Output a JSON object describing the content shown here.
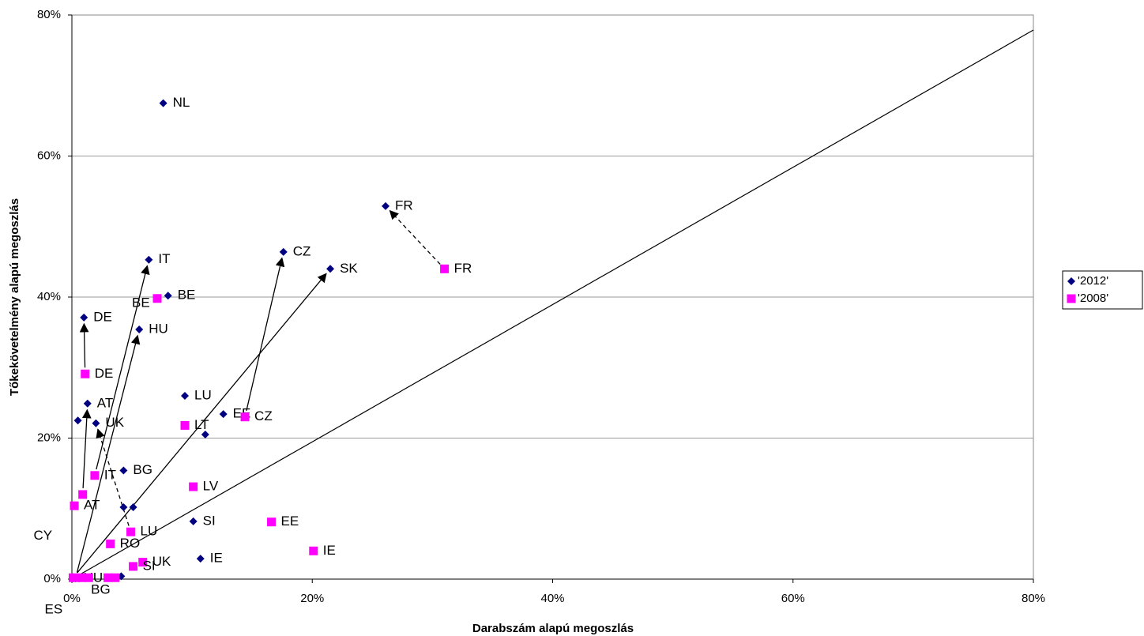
{
  "chart_data": {
    "type": "scatter",
    "x_label": "Darabszám alapú megoszlás",
    "y_label": "Tőkekövetelmény alapú megoszlás",
    "xlim": [
      0,
      80
    ],
    "ylim": [
      0,
      80
    ],
    "xticks": [
      {
        "value": 0,
        "label": "0%"
      },
      {
        "value": 20,
        "label": "20%"
      },
      {
        "value": 40,
        "label": "40%"
      },
      {
        "value": 60,
        "label": "60%"
      },
      {
        "value": 80,
        "label": "80%"
      }
    ],
    "yticks": [
      {
        "value": 0,
        "label": "0%"
      },
      {
        "value": 20,
        "label": "20%"
      },
      {
        "value": 40,
        "label": "40%"
      },
      {
        "value": 60,
        "label": "60%"
      },
      {
        "value": 80,
        "label": "80%"
      }
    ],
    "grid": true,
    "legend": "right",
    "series": [
      {
        "name": "'2012'",
        "color": "#000080",
        "marker": "diamond",
        "x": [
          7.6,
          26.1,
          17.6,
          21.5,
          6.4,
          8.0,
          1.0,
          5.6,
          9.4,
          12.6,
          11.1,
          1.3,
          0.5,
          2.0,
          4.3,
          4.3,
          5.1,
          10.1,
          10.7,
          4.1,
          0.3,
          0.6,
          0.1,
          0.1
        ],
        "values": [
          67.5,
          52.9,
          46.4,
          44.0,
          45.3,
          40.2,
          37.1,
          35.4,
          26.0,
          23.4,
          20.5,
          24.9,
          22.5,
          22.1,
          15.4,
          10.2,
          10.2,
          8.2,
          2.9,
          0.4,
          0.1,
          0.1,
          0.1,
          0.3
        ],
        "labels": [
          "NL",
          "FR",
          "CZ",
          "SK",
          "IT",
          "BE",
          "DE",
          "HU",
          "LU",
          "EE",
          null,
          "AT",
          null,
          "UK",
          "BG",
          null,
          null,
          "SI",
          "IE",
          null,
          "HU",
          "BG",
          "ES",
          "CY"
        ]
      },
      {
        "name": "'2008'",
        "color": "#ff00ff",
        "marker": "square",
        "x": [
          31.0,
          7.1,
          1.1,
          14.4,
          9.4,
          1.9,
          10.1,
          0.9,
          0.2,
          16.6,
          4.9,
          3.2,
          20.1,
          5.9,
          5.1,
          0.1,
          0.8,
          1.4,
          3.0,
          3.6
        ],
        "values": [
          44.0,
          39.8,
          29.1,
          23.0,
          21.8,
          14.7,
          13.1,
          12.0,
          10.4,
          8.1,
          6.7,
          5.0,
          4.0,
          2.4,
          1.8,
          0.2,
          0.2,
          0.2,
          0.2,
          0.2
        ],
        "labels": [
          "FR",
          "BE",
          "DE",
          "CZ",
          "LT",
          "IT",
          "LV",
          null,
          "AT",
          "EE",
          "LU",
          "RO",
          "IE",
          "UK",
          "SI",
          null,
          null,
          null,
          null,
          null
        ]
      }
    ]
  }
}
